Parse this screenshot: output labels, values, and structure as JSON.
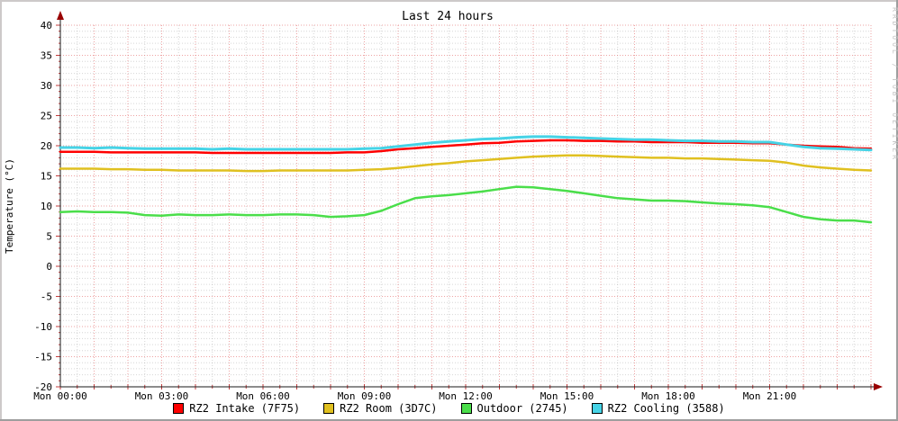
{
  "title": "Last 24 hours",
  "watermark": "RRDTOOL / TOBI OETIKER",
  "y_axis": {
    "label": "Temperature (°C)",
    "ticks": [
      40,
      35,
      30,
      25,
      20,
      15,
      10,
      5,
      0,
      -5,
      -10,
      -15,
      -20
    ]
  },
  "x_axis": {
    "ticks": [
      "Mon 00:00",
      "Mon 03:00",
      "Mon 06:00",
      "Mon 09:00",
      "Mon 12:00",
      "Mon 15:00",
      "Mon 18:00",
      "Mon 21:00"
    ],
    "tick_hours": [
      0,
      3,
      6,
      9,
      12,
      15,
      18,
      21
    ]
  },
  "legend": [
    {
      "label": "RZ2 Intake (7F75)",
      "color": "#ff0000"
    },
    {
      "label": "RZ2 Room (3D7C)",
      "color": "#e0c020"
    },
    {
      "label": "Outdoor (2745)",
      "color": "#4ade4a"
    },
    {
      "label": "RZ2 Cooling (3588)",
      "color": "#46d3e6"
    }
  ],
  "axis_colors": {
    "axis": "#1a1a1a",
    "arrow": "#990000",
    "tick": "#c23b3b",
    "major_grid": "#e05757",
    "minor_grid": "#999999"
  },
  "chart_data": {
    "type": "line",
    "title": "Last 24 hours",
    "xlabel": "",
    "ylabel": "Temperature (°C)",
    "ylim": [
      -20,
      40
    ],
    "xlim_hours": [
      0,
      24
    ],
    "grid": true,
    "legend_position": "bottom",
    "x_tick_labels": [
      "Mon 00:00",
      "Mon 03:00",
      "Mon 06:00",
      "Mon 09:00",
      "Mon 12:00",
      "Mon 15:00",
      "Mon 18:00",
      "Mon 21:00"
    ],
    "x_hours": [
      0,
      0.5,
      1,
      1.5,
      2,
      2.5,
      3,
      3.5,
      4,
      4.5,
      5,
      5.5,
      6,
      6.5,
      7,
      7.5,
      8,
      8.5,
      9,
      9.5,
      10,
      10.5,
      11,
      11.5,
      12,
      12.5,
      13,
      13.5,
      14,
      14.5,
      15,
      15.5,
      16,
      16.5,
      17,
      17.5,
      18,
      18.5,
      19,
      19.5,
      20,
      20.5,
      21,
      21.5,
      22,
      22.5,
      23,
      23.5,
      24
    ],
    "series": [
      {
        "name": "RZ2 Intake (7F75)",
        "color": "#ff0000",
        "width": 2.5,
        "values": [
          19.0,
          19.0,
          19.0,
          18.9,
          18.9,
          18.9,
          18.9,
          18.9,
          18.9,
          18.8,
          18.8,
          18.8,
          18.8,
          18.8,
          18.8,
          18.8,
          18.8,
          18.9,
          18.9,
          19.1,
          19.4,
          19.6,
          19.8,
          20.0,
          20.2,
          20.4,
          20.5,
          20.7,
          20.8,
          20.9,
          20.9,
          20.8,
          20.8,
          20.7,
          20.7,
          20.6,
          20.6,
          20.6,
          20.5,
          20.5,
          20.5,
          20.4,
          20.4,
          20.2,
          20.0,
          19.9,
          19.8,
          19.6,
          19.5
        ]
      },
      {
        "name": "RZ2 Room (3D7C)",
        "color": "#e0c020",
        "width": 2.5,
        "values": [
          16.2,
          16.2,
          16.2,
          16.1,
          16.1,
          16.0,
          16.0,
          15.9,
          15.9,
          15.9,
          15.9,
          15.8,
          15.8,
          15.9,
          15.9,
          15.9,
          15.9,
          15.9,
          16.0,
          16.1,
          16.3,
          16.6,
          16.9,
          17.1,
          17.4,
          17.6,
          17.8,
          18.0,
          18.2,
          18.3,
          18.4,
          18.4,
          18.3,
          18.2,
          18.1,
          18.0,
          18.0,
          17.9,
          17.9,
          17.8,
          17.7,
          17.6,
          17.5,
          17.2,
          16.7,
          16.4,
          16.2,
          16.0,
          15.9
        ]
      },
      {
        "name": "Outdoor (2745)",
        "color": "#4ade4a",
        "width": 2.5,
        "values": [
          9.0,
          9.1,
          9.0,
          9.0,
          8.9,
          8.5,
          8.4,
          8.6,
          8.5,
          8.5,
          8.6,
          8.5,
          8.5,
          8.6,
          8.6,
          8.5,
          8.2,
          8.3,
          8.5,
          9.2,
          10.3,
          11.3,
          11.6,
          11.8,
          12.1,
          12.4,
          12.8,
          13.2,
          13.1,
          12.8,
          12.5,
          12.1,
          11.7,
          11.3,
          11.1,
          10.9,
          10.9,
          10.8,
          10.6,
          10.4,
          10.3,
          10.1,
          9.8,
          9.0,
          8.2,
          7.8,
          7.6,
          7.6,
          7.3
        ]
      },
      {
        "name": "RZ2 Cooling (3588)",
        "color": "#46d3e6",
        "width": 3,
        "values": [
          19.7,
          19.7,
          19.6,
          19.7,
          19.6,
          19.5,
          19.5,
          19.5,
          19.5,
          19.4,
          19.5,
          19.4,
          19.4,
          19.4,
          19.4,
          19.4,
          19.4,
          19.4,
          19.5,
          19.6,
          19.9,
          20.2,
          20.5,
          20.7,
          20.9,
          21.1,
          21.2,
          21.4,
          21.5,
          21.5,
          21.4,
          21.3,
          21.2,
          21.1,
          21.0,
          21.0,
          20.9,
          20.8,
          20.8,
          20.7,
          20.7,
          20.6,
          20.6,
          20.2,
          19.8,
          19.6,
          19.5,
          19.4,
          19.3
        ]
      }
    ]
  }
}
